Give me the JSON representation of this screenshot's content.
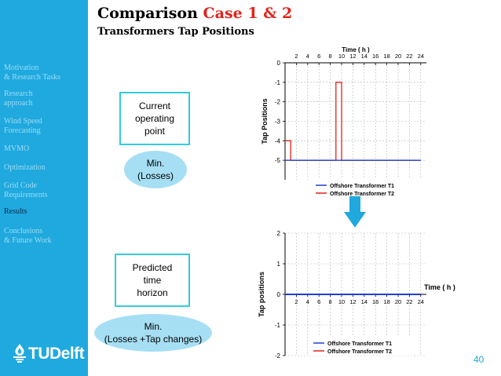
{
  "slide": {
    "title_main": "Comparison ",
    "title_accent": "Case 1 & 2",
    "subtitle": "Transformers Tap Positions",
    "page_number": "40"
  },
  "colors": {
    "sidebar": "#1fa9df",
    "accent": "#e2231a",
    "box_border": "#33ccdd",
    "ellipse": "#a6dff3",
    "series_t1": "#1f3fd6",
    "series_t2": "#e2231a"
  },
  "sidebar": {
    "items": [
      {
        "label": "Motivation\n& Research Tasks",
        "active": false
      },
      {
        "label": "Research\napproach",
        "active": false
      },
      {
        "label": "Wind Speed\nForecasting",
        "active": false
      },
      {
        "label": "MVMO",
        "active": false
      },
      {
        "label": "Optimization",
        "active": false
      },
      {
        "label": "Grid Code\nRequirements",
        "active": false
      },
      {
        "label": "Results",
        "active": true
      },
      {
        "label": "Conclusions\n& Future Work",
        "active": false
      }
    ],
    "logo_text": "TUDelft"
  },
  "labels": {
    "box1": "Current\noperating\npoint",
    "ellipse1": "Min.\n(Losses)",
    "box2": "Predicted\ntime\nhorizon",
    "ellipse2": "Min.\n(Losses +Tap changes)"
  },
  "chart_data": [
    {
      "type": "line",
      "xlabel": "Time ( h )",
      "ylabel": "Tap Positions",
      "xlim": [
        0,
        25
      ],
      "ylim": [
        -6,
        0
      ],
      "xticks": [
        2,
        4,
        6,
        8,
        10,
        12,
        14,
        16,
        18,
        20,
        22,
        24
      ],
      "yticks": [
        0,
        -1,
        -2,
        -3,
        -4,
        -5
      ],
      "grid": true,
      "legend_position": "bottom-right",
      "series": [
        {
          "name": "Offshore Transformer T1",
          "color": "#1f3fd6",
          "step": true,
          "x": [
            0,
            24
          ],
          "y": [
            -5,
            -5
          ]
        },
        {
          "name": "Offshore Transformer T2",
          "color": "#e2231a",
          "step": true,
          "x": [
            0,
            1,
            9,
            10,
            24
          ],
          "y": [
            -4,
            -5,
            -1,
            -5,
            -5
          ]
        }
      ]
    },
    {
      "type": "line",
      "xlabel": "Time ( h )",
      "ylabel": "Tap positions",
      "xlim": [
        0,
        25
      ],
      "ylim": [
        -2,
        2
      ],
      "xticks": [
        2,
        4,
        6,
        8,
        10,
        12,
        14,
        16,
        18,
        20,
        22,
        24
      ],
      "yticks": [
        2,
        1,
        0,
        -1,
        -2
      ],
      "grid": true,
      "legend_position": "bottom-right",
      "series": [
        {
          "name": "Offshore Transformer T1",
          "color": "#1f3fd6",
          "step": true,
          "x": [
            0,
            24
          ],
          "y": [
            0,
            0
          ]
        },
        {
          "name": "Offshore Transformer T2",
          "color": "#e2231a",
          "step": true,
          "x": [
            0,
            24
          ],
          "y": [
            0,
            0
          ]
        }
      ]
    }
  ]
}
